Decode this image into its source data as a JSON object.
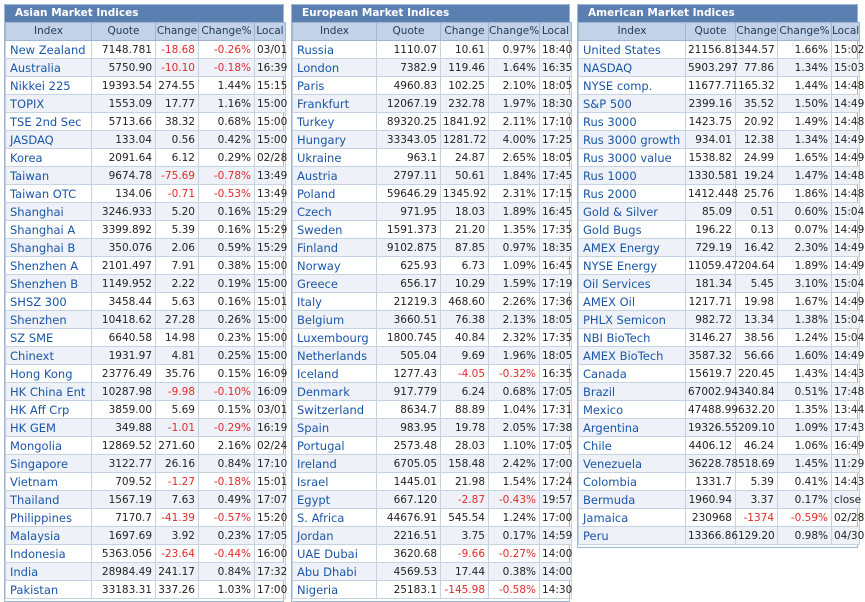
{
  "headers": [
    "Index",
    "Quote",
    "Change",
    "Change%",
    "Local"
  ],
  "colors": {
    "negative": "#e3282a",
    "link": "#1a56a8",
    "title_bar": "#5b7fb0"
  },
  "panels": [
    {
      "title": "Asian Market Indices",
      "rows": [
        [
          "New Zealand",
          "7148.781",
          "-18.68",
          "-0.26%",
          "03/01"
        ],
        [
          "Australia",
          "5750.90",
          "-10.10",
          "-0.18%",
          "16:39"
        ],
        [
          "Nikkei 225",
          "19393.54",
          "274.55",
          "1.44%",
          "15:15"
        ],
        [
          "TOPIX",
          "1553.09",
          "17.77",
          "1.16%",
          "15:00"
        ],
        [
          "TSE 2nd Sec",
          "5713.66",
          "38.32",
          "0.68%",
          "15:00"
        ],
        [
          "JASDAQ",
          "133.04",
          "0.56",
          "0.42%",
          "15:00"
        ],
        [
          "Korea",
          "2091.64",
          "6.12",
          "0.29%",
          "02/28"
        ],
        [
          "Taiwan",
          "9674.78",
          "-75.69",
          "-0.78%",
          "13:49"
        ],
        [
          "Taiwan OTC",
          "134.06",
          "-0.71",
          "-0.53%",
          "13:49"
        ],
        [
          "Shanghai",
          "3246.933",
          "5.20",
          "0.16%",
          "15:29"
        ],
        [
          "Shanghai A",
          "3399.892",
          "5.39",
          "0.16%",
          "15:29"
        ],
        [
          "Shanghai B",
          "350.076",
          "2.06",
          "0.59%",
          "15:29"
        ],
        [
          "Shenzhen A",
          "2101.497",
          "7.91",
          "0.38%",
          "15:00"
        ],
        [
          "Shenzhen B",
          "1149.952",
          "2.22",
          "0.19%",
          "15:00"
        ],
        [
          "SHSZ 300",
          "3458.44",
          "5.63",
          "0.16%",
          "15:01"
        ],
        [
          "Shenzhen",
          "10418.62",
          "27.28",
          "0.26%",
          "15:00"
        ],
        [
          "SZ SME",
          "6640.58",
          "14.98",
          "0.23%",
          "15:00"
        ],
        [
          "Chinext",
          "1931.97",
          "4.81",
          "0.25%",
          "15:00"
        ],
        [
          "Hong Kong",
          "23776.49",
          "35.76",
          "0.15%",
          "16:09"
        ],
        [
          "HK China Ent",
          "10287.98",
          "-9.98",
          "-0.10%",
          "16:09"
        ],
        [
          "HK Aff Crp",
          "3859.00",
          "5.69",
          "0.15%",
          "03/01"
        ],
        [
          "HK GEM",
          "349.88",
          "-1.01",
          "-0.29%",
          "16:19"
        ],
        [
          "Mongolia",
          "12869.52",
          "271.60",
          "2.16%",
          "02/24"
        ],
        [
          "Singapore",
          "3122.77",
          "26.16",
          "0.84%",
          "17:10"
        ],
        [
          "Vietnam",
          "709.52",
          "-1.27",
          "-0.18%",
          "15:01"
        ],
        [
          "Thailand",
          "1567.19",
          "7.63",
          "0.49%",
          "17:07"
        ],
        [
          "Philippines",
          "7170.7",
          "-41.39",
          "-0.57%",
          "15:20"
        ],
        [
          "Malaysia",
          "1697.69",
          "3.92",
          "0.23%",
          "17:05"
        ],
        [
          "Indonesia",
          "5363.056",
          "-23.64",
          "-0.44%",
          "16:00"
        ],
        [
          "India",
          "28984.49",
          "241.17",
          "0.84%",
          "17:32"
        ],
        [
          "Pakistan",
          "33183.31",
          "337.26",
          "1.03%",
          "17:00"
        ]
      ]
    },
    {
      "title": "European Market Indices",
      "rows": [
        [
          "Russia",
          "1110.07",
          "10.61",
          "0.97%",
          "18:40"
        ],
        [
          "London",
          "7382.9",
          "119.46",
          "1.64%",
          "16:35"
        ],
        [
          "Paris",
          "4960.83",
          "102.25",
          "2.10%",
          "18:05"
        ],
        [
          "Frankfurt",
          "12067.19",
          "232.78",
          "1.97%",
          "18:30"
        ],
        [
          "Turkey",
          "89320.25",
          "1841.92",
          "2.11%",
          "17:10"
        ],
        [
          "Hungary",
          "33343.05",
          "1281.72",
          "4.00%",
          "17:25"
        ],
        [
          "Ukraine",
          "963.1",
          "24.87",
          "2.65%",
          "18:05"
        ],
        [
          "Austria",
          "2797.11",
          "50.61",
          "1.84%",
          "17:45"
        ],
        [
          "Poland",
          "59646.29",
          "1345.92",
          "2.31%",
          "17:15"
        ],
        [
          "Czech",
          "971.95",
          "18.03",
          "1.89%",
          "16:45"
        ],
        [
          "Sweden",
          "1591.373",
          "21.20",
          "1.35%",
          "17:35"
        ],
        [
          "Finland",
          "9102.875",
          "87.85",
          "0.97%",
          "18:35"
        ],
        [
          "Norway",
          "625.93",
          "6.73",
          "1.09%",
          "16:45"
        ],
        [
          "Greece",
          "656.17",
          "10.29",
          "1.59%",
          "17:19"
        ],
        [
          "Italy",
          "21219.3",
          "468.60",
          "2.26%",
          "17:36"
        ],
        [
          "Belgium",
          "3660.51",
          "76.38",
          "2.13%",
          "18:05"
        ],
        [
          "Luxembourg",
          "1800.745",
          "40.84",
          "2.32%",
          "17:35"
        ],
        [
          "Netherlands",
          "505.04",
          "9.69",
          "1.96%",
          "18:05"
        ],
        [
          "Iceland",
          "1277.43",
          "-4.05",
          "-0.32%",
          "16:35"
        ],
        [
          "Denmark",
          "917.779",
          "6.24",
          "0.68%",
          "17:05"
        ],
        [
          "Switzerland",
          "8634.7",
          "88.89",
          "1.04%",
          "17:31"
        ],
        [
          "Spain",
          "983.95",
          "19.78",
          "2.05%",
          "17:38"
        ],
        [
          "Portugal",
          "2573.48",
          "28.03",
          "1.10%",
          "17:05"
        ],
        [
          "Ireland",
          "6705.05",
          "158.48",
          "2.42%",
          "17:00"
        ],
        [
          "Israel",
          "1445.01",
          "21.98",
          "1.54%",
          "17:24"
        ],
        [
          "Egypt",
          "667.120",
          "-2.87",
          "-0.43%",
          "19:57"
        ],
        [
          "S. Africa",
          "44676.91",
          "545.54",
          "1.24%",
          "17:00"
        ],
        [
          "Jordan",
          "2216.51",
          "3.75",
          "0.17%",
          "14:59"
        ],
        [
          "UAE Dubai",
          "3620.68",
          "-9.66",
          "-0.27%",
          "14:00"
        ],
        [
          "Abu Dhabi",
          "4569.53",
          "17.44",
          "0.38%",
          "14:00"
        ],
        [
          "Nigeria",
          "25183.1",
          "-145.98",
          "-0.58%",
          "14:30"
        ]
      ]
    },
    {
      "title": "American Market Indices",
      "rows": [
        [
          "United States",
          "21156.81",
          "344.57",
          "1.66%",
          "15:02"
        ],
        [
          "NASDAQ",
          "5903.297",
          "77.86",
          "1.34%",
          "15:03"
        ],
        [
          "NYSE comp.",
          "11677.71",
          "165.32",
          "1.44%",
          "14:48"
        ],
        [
          "S&P 500",
          "2399.16",
          "35.52",
          "1.50%",
          "14:49"
        ],
        [
          "Rus 3000",
          "1423.75",
          "20.92",
          "1.49%",
          "14:48"
        ],
        [
          "Rus 3000 growth",
          "934.01",
          "12.38",
          "1.34%",
          "14:49"
        ],
        [
          "Rus 3000 value",
          "1538.82",
          "24.99",
          "1.65%",
          "14:49"
        ],
        [
          "Rus 1000",
          "1330.581",
          "19.24",
          "1.47%",
          "14:48"
        ],
        [
          "Rus 2000",
          "1412.448",
          "25.76",
          "1.86%",
          "14:48"
        ],
        [
          "Gold & Silver",
          "85.09",
          "0.51",
          "0.60%",
          "15:04"
        ],
        [
          "Gold Bugs",
          "196.22",
          "0.13",
          "0.07%",
          "14:49"
        ],
        [
          "AMEX Energy",
          "729.19",
          "16.42",
          "2.30%",
          "14:49"
        ],
        [
          "NYSE Energy",
          "11059.47",
          "204.64",
          "1.89%",
          "14:49"
        ],
        [
          "Oil Services",
          "181.34",
          "5.45",
          "3.10%",
          "15:04"
        ],
        [
          "AMEX Oil",
          "1217.71",
          "19.98",
          "1.67%",
          "14:49"
        ],
        [
          "PHLX Semicon",
          "982.72",
          "13.34",
          "1.38%",
          "15:04"
        ],
        [
          "NBI BioTech",
          "3146.27",
          "38.56",
          "1.24%",
          "15:04"
        ],
        [
          "AMEX BioTech",
          "3587.32",
          "56.66",
          "1.60%",
          "14:49"
        ],
        [
          "Canada",
          "15619.7",
          "220.45",
          "1.43%",
          "14:43"
        ],
        [
          "Brazil",
          "67002.94",
          "340.84",
          "0.51%",
          "17:48"
        ],
        [
          "Mexico",
          "47488.99",
          "632.20",
          "1.35%",
          "13:44"
        ],
        [
          "Argentina",
          "19326.55",
          "209.10",
          "1.09%",
          "17:43"
        ],
        [
          "Chile",
          "4406.12",
          "46.24",
          "1.06%",
          "16:49"
        ],
        [
          "Venezuela",
          "36228.78",
          "518.69",
          "1.45%",
          "11:29"
        ],
        [
          "Colombia",
          "1331.7",
          "5.39",
          "0.41%",
          "14:43"
        ],
        [
          "Bermuda",
          "1960.94",
          "3.37",
          "0.17%",
          "close"
        ],
        [
          "Jamaica",
          "230968",
          "-1374",
          "-0.59%",
          "02/28"
        ],
        [
          "Peru",
          "13366.86",
          "129.20",
          "0.98%",
          "04/30"
        ]
      ]
    }
  ]
}
